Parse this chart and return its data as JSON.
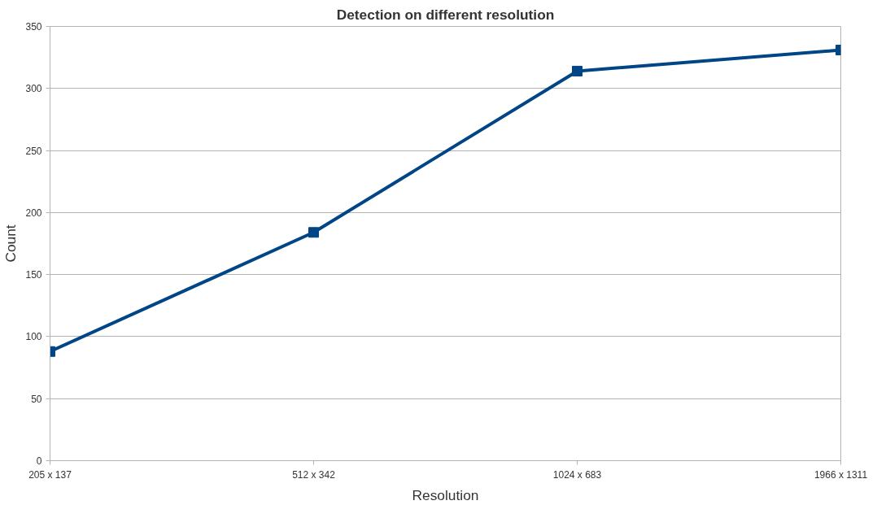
{
  "chart_data": {
    "type": "line",
    "title": "Detection on different resolution",
    "xlabel": "Resolution",
    "ylabel": "Count",
    "categories": [
      "205 x 137",
      "512 x 342",
      "1024 x 683",
      "1966 x 1311"
    ],
    "series": [
      {
        "color": "#004586",
        "values": [
          88,
          184,
          314,
          331
        ]
      }
    ],
    "ylim": [
      0,
      350
    ],
    "yticks": [
      0,
      50,
      100,
      150,
      200,
      250,
      300,
      350
    ],
    "grid": "y",
    "marker": "square",
    "line_style": "solid"
  }
}
